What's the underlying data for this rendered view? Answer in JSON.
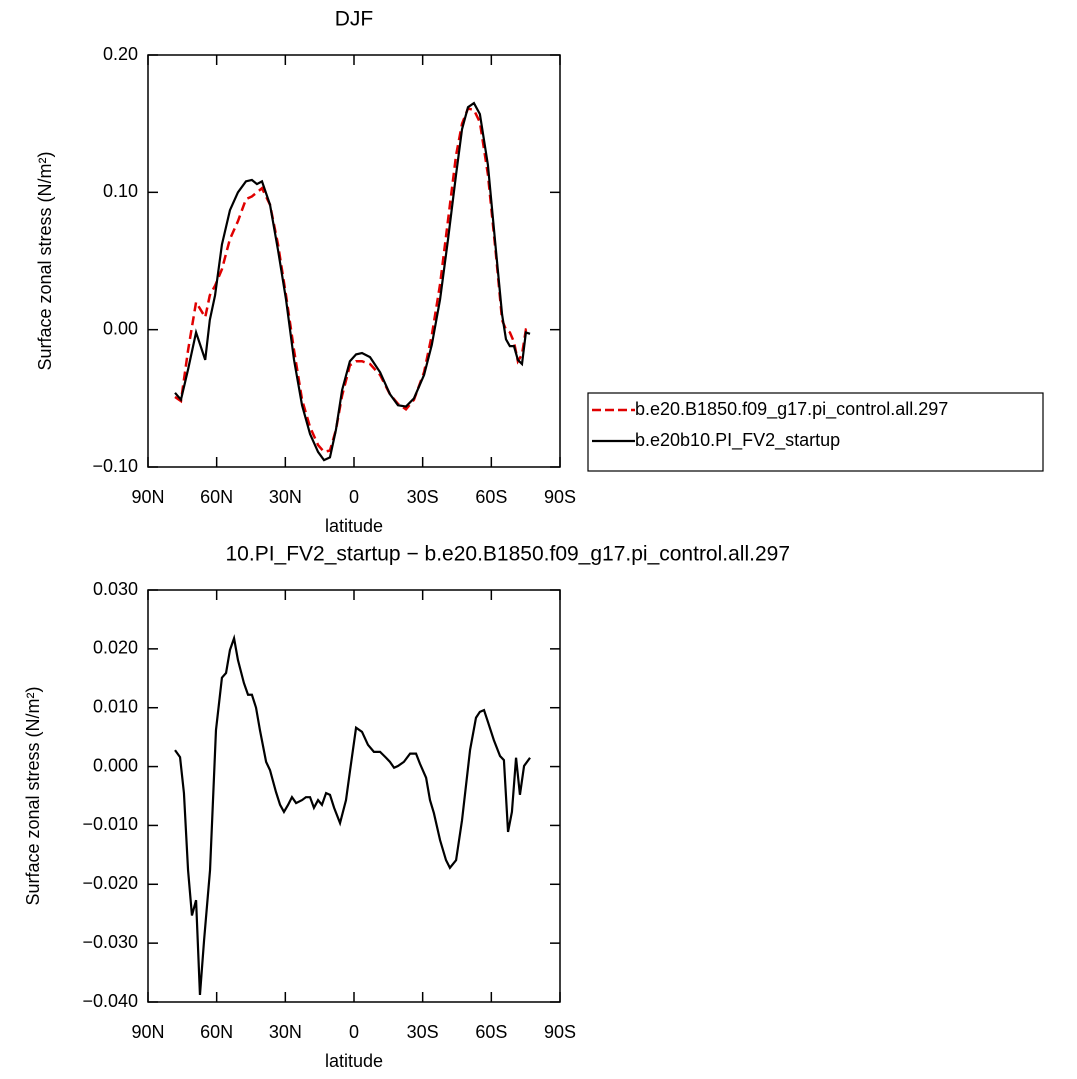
{
  "chart_data": [
    {
      "type": "line",
      "title": "DJF",
      "xlabel": "latitude",
      "ylabel": "Surface zonal stress (N/m²)",
      "x": [
        78.2,
        75.6,
        72.5,
        69.0,
        65.0,
        63.0,
        60.7,
        57.7,
        54.2,
        50.7,
        47.2,
        44.6,
        42.4,
        40.2,
        36.7,
        33.2,
        29.7,
        26.2,
        22.7,
        19.2,
        15.7,
        13.1,
        10.5,
        7.9,
        5.2,
        1.8,
        -0.9,
        -3.5,
        -7.0,
        -11.4,
        -15.7,
        -19.2,
        -22.7,
        -26.2,
        -30.6,
        -34.0,
        -37.6,
        -41.1,
        -44.6,
        -47.2,
        -49.8,
        -52.4,
        -55.0,
        -58.5,
        -62.0,
        -64.7,
        -66.4,
        -68.1,
        -69.9,
        -71.6,
        -73.4,
        -75.1,
        -76.9
      ],
      "xlim": [
        90,
        -90
      ],
      "xticks": [
        {
          "value": 90,
          "label": "90N"
        },
        {
          "value": 60,
          "label": "60N"
        },
        {
          "value": 30,
          "label": "30N"
        },
        0,
        {
          "value": -30,
          "label": "30S"
        },
        {
          "value": -60,
          "label": "60S"
        },
        {
          "value": -90,
          "label": "90S"
        }
      ],
      "ylim": [
        -0.1,
        0.2
      ],
      "yticks": [
        {
          "value": -0.1,
          "label": "−0.10"
        },
        {
          "value": 0,
          "label": "0.00"
        },
        {
          "value": 0.1,
          "label": "0.10"
        },
        {
          "value": 0.2,
          "label": "0.20"
        }
      ],
      "legend": "right",
      "series": [
        {
          "name": "b.e20.B1850.f09_g17.pi_control.all.297",
          "color": "#e00000",
          "dashed": true,
          "values": [
            -0.049,
            -0.052,
            -0.015,
            0.02,
            0.009,
            0.025,
            0.032,
            0.044,
            0.066,
            0.079,
            0.095,
            0.097,
            0.1,
            0.103,
            0.091,
            0.062,
            0.025,
            -0.015,
            -0.051,
            -0.071,
            -0.084,
            -0.089,
            -0.088,
            -0.073,
            -0.048,
            -0.026,
            -0.023,
            -0.023,
            -0.025,
            -0.033,
            -0.047,
            -0.054,
            -0.058,
            -0.051,
            -0.031,
            -0.004,
            0.033,
            0.08,
            0.127,
            0.15,
            0.161,
            0.16,
            0.151,
            0.113,
            0.055,
            0.007,
            0.0,
            -0.002,
            -0.009,
            -0.023,
            -0.018,
            0.0,
            -0.001
          ]
        },
        {
          "name": "b.e20b10.PI_FV2_startup",
          "color": "#000000",
          "dashed": false,
          "values": [
            -0.046,
            -0.051,
            -0.029,
            -0.002,
            -0.022,
            0.007,
            0.025,
            0.062,
            0.087,
            0.1,
            0.108,
            0.109,
            0.106,
            0.108,
            0.091,
            0.058,
            0.022,
            -0.022,
            -0.055,
            -0.076,
            -0.089,
            -0.095,
            -0.093,
            -0.073,
            -0.044,
            -0.023,
            -0.018,
            -0.017,
            -0.02,
            -0.031,
            -0.047,
            -0.055,
            -0.056,
            -0.05,
            -0.033,
            -0.011,
            0.022,
            0.066,
            0.113,
            0.146,
            0.162,
            0.165,
            0.157,
            0.12,
            0.058,
            0.011,
            -0.007,
            -0.012,
            -0.012,
            -0.022,
            -0.025,
            -0.002,
            -0.003
          ]
        }
      ]
    },
    {
      "type": "line",
      "title": "10.PI_FV2_startup − b.e20.B1850.f09_g17.pi_control.all.297",
      "xlabel": "latitude",
      "ylabel": "Surface zonal stress (N/m²)",
      "x": [
        78.2,
        76.0,
        74.3,
        72.5,
        70.8,
        69.0,
        67.3,
        65.5,
        62.9,
        60.3,
        57.7,
        55.9,
        54.2,
        52.4,
        50.7,
        48.1,
        46.3,
        44.6,
        42.8,
        41.1,
        38.4,
        36.7,
        34.1,
        32.3,
        30.6,
        28.8,
        27.1,
        25.3,
        22.7,
        21.0,
        19.2,
        17.5,
        15.7,
        14.0,
        12.2,
        10.5,
        8.7,
        6.1,
        3.5,
        1.7,
        -0.9,
        -3.5,
        -6.1,
        -8.7,
        -11.4,
        -14.0,
        -15.7,
        -17.5,
        -19.2,
        -21.8,
        -24.5,
        -27.1,
        -28.8,
        -31.5,
        -33.2,
        -34.9,
        -37.6,
        -40.2,
        -41.9,
        -44.6,
        -47.2,
        -50.7,
        -53.3,
        -55.0,
        -56.8,
        -58.5,
        -61.1,
        -63.8,
        -65.5,
        -67.3,
        -69.0,
        -70.8,
        -72.5,
        -74.3,
        -76.9
      ],
      "xlim": [
        90,
        -90
      ],
      "xticks": [
        {
          "value": 90,
          "label": "90N"
        },
        {
          "value": 60,
          "label": "60N"
        },
        {
          "value": 30,
          "label": "30N"
        },
        0,
        {
          "value": -30,
          "label": "30S"
        },
        {
          "value": -60,
          "label": "60S"
        },
        {
          "value": -90,
          "label": "90S"
        }
      ],
      "ylim": [
        -0.04,
        0.03
      ],
      "yticks": [
        {
          "value": -0.04,
          "label": "−0.040"
        },
        {
          "value": -0.03,
          "label": "−0.030"
        },
        {
          "value": -0.02,
          "label": "−0.020"
        },
        {
          "value": -0.01,
          "label": "−0.010"
        },
        {
          "value": 0,
          "label": "0.000"
        },
        {
          "value": 0.01,
          "label": "0.010"
        },
        {
          "value": 0.02,
          "label": "0.020"
        },
        {
          "value": 0.03,
          "label": "0.030"
        }
      ],
      "series": [
        {
          "color": "#000000",
          "dashed": false,
          "values": [
            0.0028,
            0.0016,
            -0.0045,
            -0.0176,
            -0.0253,
            -0.0227,
            -0.0388,
            -0.0295,
            -0.0176,
            0.0062,
            0.0151,
            0.0159,
            0.0198,
            0.0218,
            0.0181,
            0.0142,
            0.0122,
            0.0122,
            0.01,
            0.0062,
            0.0008,
            -0.0006,
            -0.0043,
            -0.0065,
            -0.0077,
            -0.0065,
            -0.0052,
            -0.0062,
            -0.0057,
            -0.0052,
            -0.0052,
            -0.007,
            -0.0057,
            -0.0065,
            -0.0045,
            -0.0048,
            -0.007,
            -0.0096,
            -0.0057,
            -0.0006,
            0.0066,
            0.0059,
            0.0037,
            0.0025,
            0.0025,
            0.0015,
            0.0008,
            -0.0002,
            0.0001,
            0.0008,
            0.0022,
            0.0022,
            0.0005,
            -0.0019,
            -0.0057,
            -0.0079,
            -0.0125,
            -0.0159,
            -0.0172,
            -0.0159,
            -0.0091,
            0.0028,
            0.0083,
            0.0093,
            0.0096,
            0.0076,
            0.0045,
            0.0018,
            0.0011,
            -0.0111,
            -0.0077,
            0.0015,
            -0.0048,
            0.0001,
            0.0015
          ]
        }
      ]
    }
  ]
}
